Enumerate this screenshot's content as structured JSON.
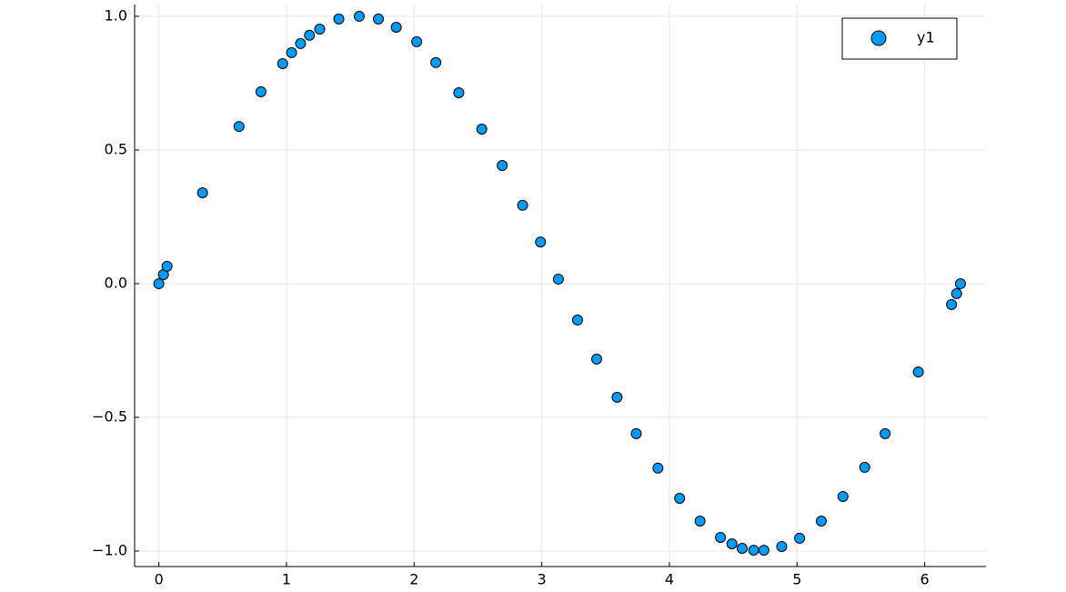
{
  "chart_data": {
    "type": "scatter",
    "x": [
      0,
      0.036,
      0.064,
      0.342,
      0.628,
      0.8,
      0.97,
      1.04,
      1.11,
      1.18,
      1.26,
      1.41,
      1.57,
      1.72,
      1.86,
      2.02,
      2.17,
      2.35,
      2.53,
      2.69,
      2.85,
      2.99,
      3.13,
      3.28,
      3.43,
      3.59,
      3.74,
      3.91,
      4.08,
      4.24,
      4.4,
      4.49,
      4.57,
      4.66,
      4.74,
      4.88,
      5.02,
      5.19,
      5.36,
      5.53,
      5.69,
      5.95,
      6.21,
      6.25,
      6.28
    ],
    "series": [
      {
        "name": "y1",
        "color": "#009af9",
        "values": [
          0,
          0.034,
          0.065,
          0.34,
          0.588,
          0.718,
          0.823,
          0.864,
          0.898,
          0.929,
          0.952,
          0.99,
          1.0,
          0.99,
          0.959,
          0.905,
          0.827,
          0.714,
          0.578,
          0.442,
          0.293,
          0.156,
          0.017,
          -0.136,
          -0.282,
          -0.425,
          -0.561,
          -0.69,
          -0.803,
          -0.888,
          -0.949,
          -0.973,
          -0.99,
          -0.997,
          -0.997,
          -0.983,
          -0.952,
          -0.888,
          -0.796,
          -0.687,
          -0.561,
          -0.33,
          -0.078,
          -0.037,
          0
        ]
      }
    ],
    "xlim": [
      -0.19,
      6.48
    ],
    "ylim": [
      -1.058,
      1.044
    ],
    "xticks": [
      0,
      1,
      2,
      3,
      4,
      5,
      6
    ],
    "yticks": [
      {
        "value": -1,
        "label": "−1.0"
      },
      {
        "value": -0.5,
        "label": "−0.5"
      },
      {
        "value": 0,
        "label": "0.0"
      },
      {
        "value": 0.5,
        "label": "0.5"
      },
      {
        "value": 1,
        "label": "1.0"
      }
    ],
    "grid": true,
    "legend": "top-right"
  }
}
